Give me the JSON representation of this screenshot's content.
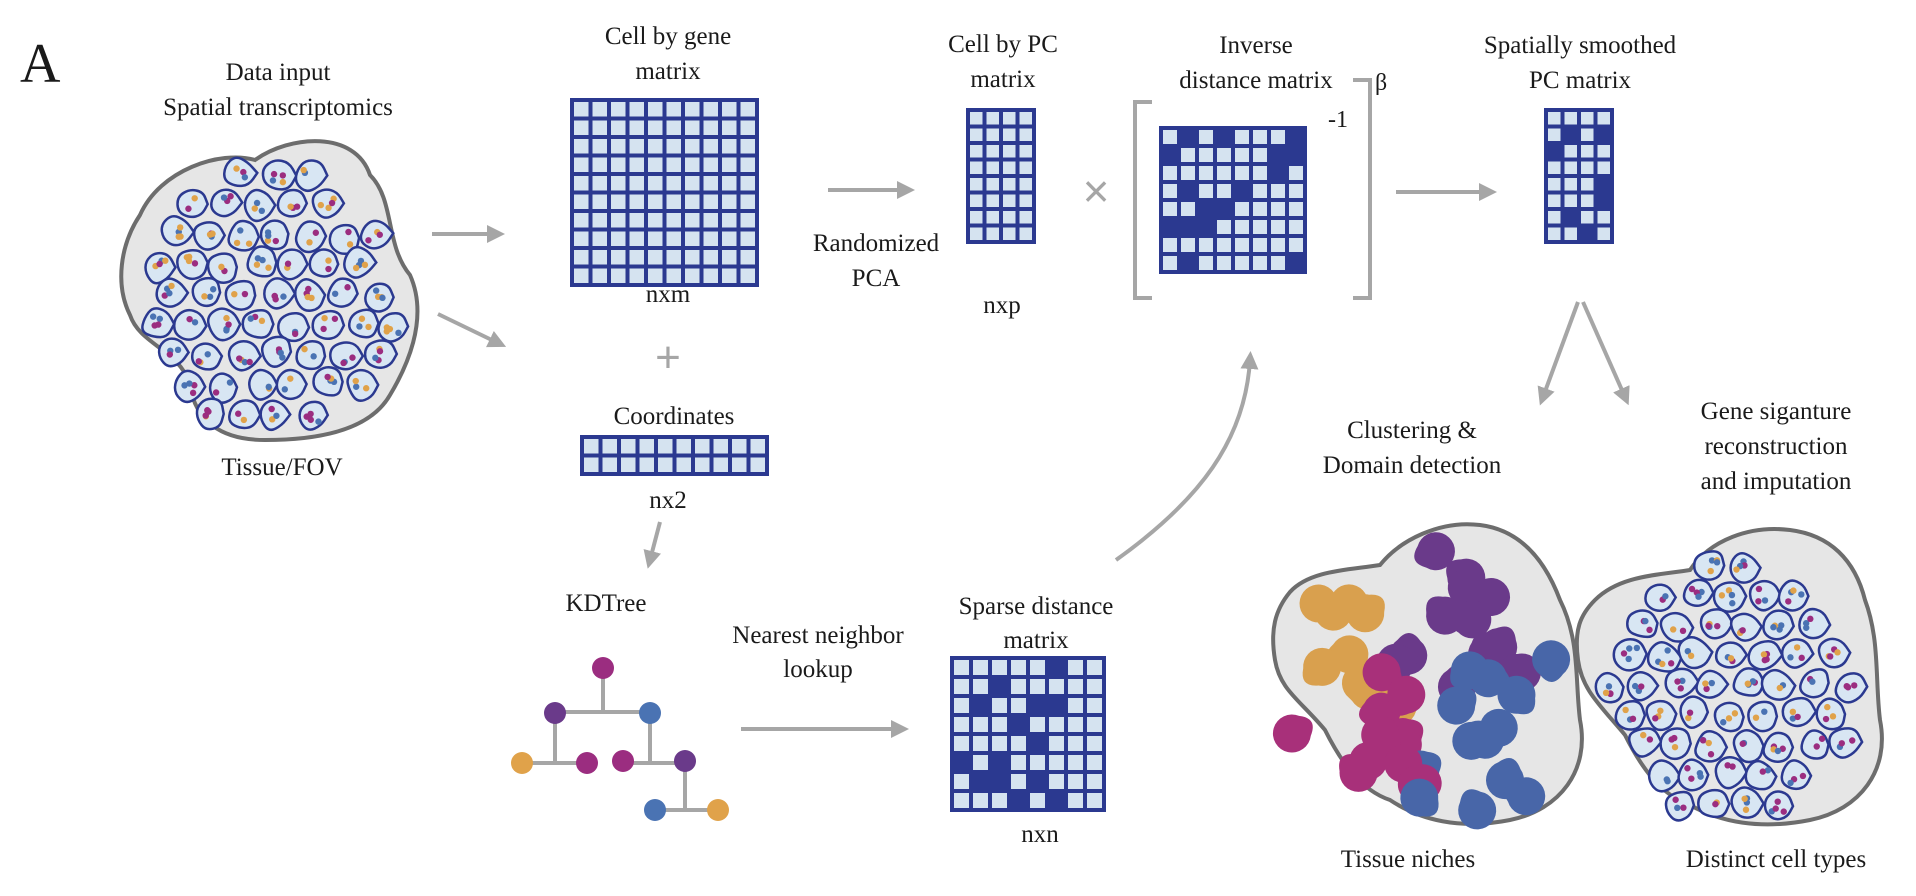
{
  "panel_letter": "A",
  "colors": {
    "matrix_border": "#2b3990",
    "matrix_cell": "#d5e3f0",
    "matrix_dark": "#2b3990",
    "arrow": "#a6a6a6",
    "tissue_fill": "#e6e6e6",
    "tissue_border": "#6d6d6d",
    "cell_fill": "#d8e6f3",
    "cell_border": "#2b3990",
    "dot_purple": "#9b2d80",
    "dot_blue": "#4a73b3",
    "dot_orange": "#e0a24a",
    "niche_orange": "#d9a04e",
    "niche_purple": "#6a3a8a",
    "niche_magenta": "#a8307a",
    "niche_blue": "#4866a8"
  },
  "labels": {
    "data_input": [
      "Data input",
      "Spatial transcriptomics"
    ],
    "tissue_fov": "Tissue/FOV",
    "cell_by_gene": [
      "Cell by gene",
      "matrix"
    ],
    "nxm": "nxm",
    "plus": "+",
    "coordinates": "Coordinates",
    "nx2": "nx2",
    "kdtree": "KDTree",
    "randomized_pca": [
      "Randomized",
      "PCA"
    ],
    "cell_by_pc": [
      "Cell by PC",
      "matrix"
    ],
    "nxp": "nxp",
    "times": "×",
    "inverse_distance": [
      "Inverse",
      "distance matrix"
    ],
    "exponent_minus_one": "-1",
    "beta": "β",
    "spatially_smoothed": [
      "Spatially smoothed",
      "PC matrix"
    ],
    "nearest_neighbor": [
      "Nearest neighbor",
      "lookup"
    ],
    "sparse_distance": [
      "Sparse distance",
      "matrix"
    ],
    "nxn": "nxn",
    "clustering": [
      "Clustering &",
      "Domain detection"
    ],
    "gene_signature": [
      "Gene siganture",
      "reconstruction",
      "and imputation"
    ],
    "tissue_niches": "Tissue niches",
    "distinct_cell_types": "Distinct cell types"
  },
  "icons": {
    "arrows": "arrow-icon",
    "tree": "kdtree-icon",
    "tissue": "tissue-icon"
  }
}
